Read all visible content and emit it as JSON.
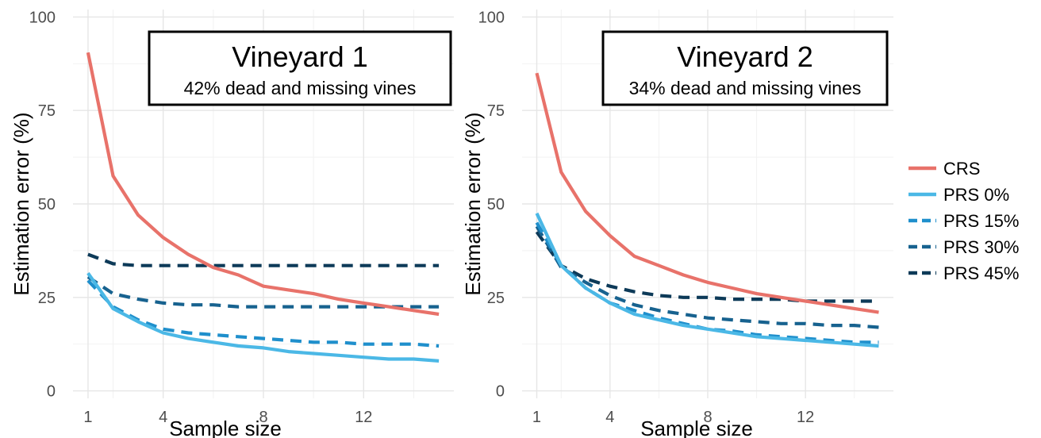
{
  "chart_data": [
    {
      "type": "line",
      "title": "Vineyard 1",
      "subtitle": "42% dead and missing vines",
      "xlabel": "Sample size",
      "ylabel": "Estimation error (%)",
      "xlim": [
        0.4,
        15.6
      ],
      "ylim": [
        -2,
        102
      ],
      "xticks": [
        1,
        4,
        8,
        12
      ],
      "yticks": [
        0,
        25,
        50,
        75,
        100
      ],
      "grid": true,
      "x": [
        1,
        2,
        3,
        4,
        5,
        6,
        7,
        8,
        9,
        10,
        11,
        12,
        13,
        14,
        15
      ],
      "series": [
        {
          "name": "CRS",
          "values": [
            90.5,
            57.5,
            47,
            41,
            36.5,
            33,
            31,
            28,
            27,
            26,
            24.5,
            23.5,
            22.5,
            21.5,
            20.5
          ]
        },
        {
          "name": "PRS 0%",
          "values": [
            31.5,
            22,
            18.5,
            15.5,
            14,
            13,
            12,
            11.5,
            10.5,
            10,
            9.5,
            9,
            8.5,
            8.5,
            8
          ]
        },
        {
          "name": "PRS 15%",
          "values": [
            29.5,
            22.5,
            19,
            16.5,
            15.5,
            15,
            14.5,
            14,
            13.5,
            13,
            13,
            12.5,
            12.5,
            12.5,
            12
          ]
        },
        {
          "name": "PRS 30%",
          "values": [
            30.5,
            26,
            24.5,
            23.5,
            23,
            23,
            22.5,
            22.5,
            22.5,
            22.5,
            22.5,
            22.5,
            22.5,
            22.5,
            22.5
          ]
        },
        {
          "name": "PRS 45%",
          "values": [
            36.5,
            34,
            33.5,
            33.5,
            33.5,
            33.5,
            33.5,
            33.5,
            33.5,
            33.5,
            33.5,
            33.5,
            33.5,
            33.5,
            33.5
          ]
        }
      ]
    },
    {
      "type": "line",
      "title": "Vineyard 2",
      "subtitle": "34% dead and missing vines",
      "xlabel": "Sample size",
      "ylabel": "Estimation error (%)",
      "xlim": [
        0.4,
        15.6
      ],
      "ylim": [
        -2,
        102
      ],
      "xticks": [
        1,
        4,
        8,
        12
      ],
      "yticks": [
        0,
        25,
        50,
        75,
        100
      ],
      "grid": true,
      "x": [
        1,
        2,
        3,
        4,
        5,
        6,
        7,
        8,
        9,
        10,
        11,
        12,
        13,
        14,
        15
      ],
      "series": [
        {
          "name": "CRS",
          "values": [
            85,
            58.5,
            48,
            41.5,
            36,
            33.5,
            31,
            29,
            27.5,
            26,
            25,
            24,
            23,
            22,
            21
          ]
        },
        {
          "name": "PRS 0%",
          "values": [
            47.5,
            33.5,
            27.5,
            23.5,
            20.5,
            19,
            17.5,
            16.5,
            15.5,
            14.5,
            14,
            13.5,
            13,
            12.5,
            12
          ]
        },
        {
          "name": "PRS 15%",
          "values": [
            45,
            33.5,
            27.5,
            23.5,
            21.5,
            19.5,
            18,
            16.5,
            16,
            15,
            14.5,
            14,
            13.5,
            13,
            13
          ]
        },
        {
          "name": "PRS 30%",
          "values": [
            44,
            33,
            29,
            25.5,
            23,
            21.5,
            20.5,
            19.5,
            19,
            18.5,
            18,
            18,
            17.5,
            17.5,
            17
          ]
        },
        {
          "name": "PRS 45%",
          "values": [
            42.5,
            33.5,
            30,
            28,
            26.5,
            25.5,
            25,
            25,
            24.5,
            24.5,
            24.5,
            24,
            24,
            24,
            24
          ]
        }
      ]
    }
  ],
  "legend": {
    "placement": "right",
    "items": [
      {
        "name": "CRS",
        "color": "#e8726a",
        "dash": "solid"
      },
      {
        "name": "PRS 0%",
        "color": "#4bb8e6",
        "dash": "solid"
      },
      {
        "name": "PRS 15%",
        "color": "#1f8fcc",
        "dash": "dashed"
      },
      {
        "name": "PRS 30%",
        "color": "#17628f",
        "dash": "dashed"
      },
      {
        "name": "PRS 45%",
        "color": "#0d3a58",
        "dash": "dashed"
      }
    ]
  }
}
